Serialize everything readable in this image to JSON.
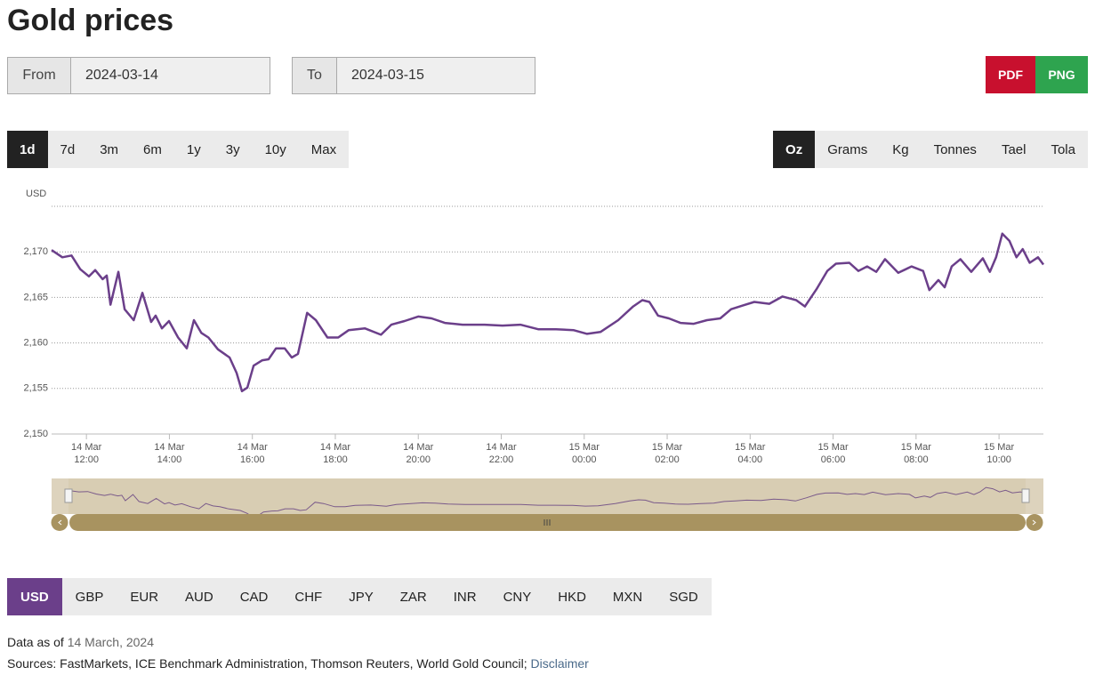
{
  "header": {
    "title": "Gold prices"
  },
  "date_range": {
    "from_label": "From",
    "from_value": "2024-03-14",
    "to_label": "To",
    "to_value": "2024-03-15"
  },
  "export_buttons": [
    "PDF",
    "PNG"
  ],
  "range_buttons": [
    "1d",
    "7d",
    "3m",
    "6m",
    "1y",
    "3y",
    "10y",
    "Max"
  ],
  "unit_buttons": [
    "Oz",
    "Grams",
    "Kg",
    "Tonnes",
    "Tael",
    "Tola"
  ],
  "currency_buttons": [
    "USD",
    "GBP",
    "EUR",
    "AUD",
    "CAD",
    "CHF",
    "JPY",
    "ZAR",
    "INR",
    "CNY",
    "HKD",
    "MXN",
    "SGD"
  ],
  "footer": {
    "data_as_of_label": "Data as of",
    "data_as_of_date": "14 March, 2024",
    "sources": "Sources: FastMarkets, ICE Benchmark Administration, Thomson Reuters, World Gold Council;",
    "disclaimer": "Disclaimer"
  },
  "chart_data": {
    "type": "line",
    "y_label": "USD",
    "color": "#6b3f8a",
    "grid": true,
    "x": [
      11.16,
      11.42,
      11.64,
      11.85,
      12.06,
      12.21,
      12.39,
      12.49,
      12.58,
      12.77,
      12.92,
      13.14,
      13.35,
      13.56,
      13.67,
      13.82,
      13.99,
      14.21,
      14.42,
      14.59,
      14.77,
      14.94,
      15.17,
      15.45,
      15.62,
      15.75,
      15.88,
      16.03,
      16.24,
      16.39,
      16.57,
      16.78,
      16.95,
      17.1,
      17.32,
      17.53,
      17.81,
      18.07,
      18.32,
      18.71,
      19.1,
      19.35,
      19.67,
      20.0,
      20.32,
      20.64,
      21.07,
      21.6,
      22.03,
      22.46,
      22.89,
      23.32,
      23.75,
      24.07,
      24.39,
      24.82,
      25.18,
      25.4,
      25.57,
      25.78,
      26.04,
      26.32,
      26.64,
      26.96,
      27.28,
      27.54,
      27.82,
      28.1,
      28.46,
      28.78,
      29.11,
      29.32,
      29.6,
      29.86,
      30.07,
      30.39,
      30.61,
      30.82,
      31.04,
      31.25,
      31.57,
      31.89,
      32.17,
      32.32,
      32.54,
      32.69,
      32.86,
      33.07,
      33.33,
      33.61,
      33.78,
      33.93,
      34.08,
      34.25,
      34.42,
      34.57,
      34.74,
      34.94,
      35.07
    ],
    "values": [
      2170.2,
      2169.4,
      2169.6,
      2168.1,
      2167.3,
      2168.0,
      2167.0,
      2167.4,
      2164.2,
      2167.8,
      2163.7,
      2162.5,
      2165.5,
      2162.3,
      2163.0,
      2161.6,
      2162.4,
      2160.6,
      2159.4,
      2162.5,
      2161.1,
      2160.6,
      2159.3,
      2158.4,
      2156.7,
      2154.7,
      2155.1,
      2157.5,
      2158.1,
      2158.2,
      2159.4,
      2159.4,
      2158.4,
      2158.8,
      2163.3,
      2162.5,
      2160.6,
      2160.6,
      2161.4,
      2161.6,
      2160.9,
      2162.0,
      2162.4,
      2162.9,
      2162.7,
      2162.2,
      2162.0,
      2162.0,
      2161.9,
      2162.0,
      2161.5,
      2161.5,
      2161.4,
      2161.0,
      2161.2,
      2162.5,
      2164.0,
      2164.7,
      2164.5,
      2163.0,
      2162.7,
      2162.2,
      2162.1,
      2162.5,
      2162.7,
      2163.7,
      2164.1,
      2164.5,
      2164.3,
      2165.1,
      2164.7,
      2164.0,
      2165.9,
      2167.9,
      2168.7,
      2168.8,
      2167.9,
      2168.4,
      2167.8,
      2169.2,
      2167.7,
      2168.4,
      2167.9,
      2165.8,
      2166.9,
      2166.1,
      2168.4,
      2169.2,
      2167.8,
      2169.3,
      2167.8,
      2169.4,
      2172.0,
      2171.2,
      2169.4,
      2170.3,
      2168.8,
      2169.4,
      2168.6
    ],
    "xlim": [
      11.16,
      35.07
    ],
    "xticks": [
      {
        "value": 12,
        "label": "14 Mar\n12:00"
      },
      {
        "value": 14,
        "label": "14 Mar\n14:00"
      },
      {
        "value": 16,
        "label": "14 Mar\n16:00"
      },
      {
        "value": 18,
        "label": "14 Mar\n18:00"
      },
      {
        "value": 20,
        "label": "14 Mar\n20:00"
      },
      {
        "value": 22,
        "label": "14 Mar\n22:00"
      },
      {
        "value": 24,
        "label": "15 Mar\n00:00"
      },
      {
        "value": 26,
        "label": "15 Mar\n02:00"
      },
      {
        "value": 28,
        "label": "15 Mar\n04:00"
      },
      {
        "value": 30,
        "label": "15 Mar\n06:00"
      },
      {
        "value": 32,
        "label": "15 Mar\n08:00"
      },
      {
        "value": 34,
        "label": "15 Mar\n10:00"
      }
    ],
    "ylim": [
      2150,
      2175
    ],
    "yticks": [
      {
        "value": 2150,
        "label": "2,150"
      },
      {
        "value": 2155,
        "label": "2,155"
      },
      {
        "value": 2160,
        "label": "2,160"
      },
      {
        "value": 2165,
        "label": "2,165"
      },
      {
        "value": 2170,
        "label": "2,170"
      }
    ]
  }
}
